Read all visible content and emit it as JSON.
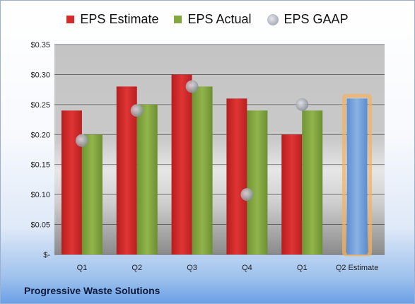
{
  "footer_title": "Progressive Waste Solutions",
  "colors": {
    "estimate": "#d42a2a",
    "actual": "#84a83f",
    "gaap": "#a8adb5",
    "forecast": "#79a5db",
    "forecast_glow": "#f3b15f"
  },
  "chart_data": {
    "type": "bar",
    "categories": [
      "Q1",
      "Q2",
      "Q3",
      "Q4",
      "Q1",
      "Q2 Estimate"
    ],
    "series": [
      {
        "name": "EPS Estimate",
        "values": [
          0.24,
          0.28,
          0.3,
          0.26,
          0.2,
          null
        ]
      },
      {
        "name": "EPS Actual",
        "values": [
          0.2,
          0.25,
          0.28,
          0.24,
          0.24,
          null
        ]
      },
      {
        "name": "EPS GAAP",
        "marker": "circle",
        "values": [
          0.19,
          0.24,
          0.28,
          0.1,
          0.25,
          null
        ]
      }
    ],
    "forecast": {
      "category": "Q2 Estimate",
      "value": 0.26,
      "highlighted": true
    },
    "ylim": [
      0,
      0.35
    ],
    "yticks": [
      0,
      0.05,
      0.1,
      0.15,
      0.2,
      0.25,
      0.3,
      0.35
    ],
    "ytick_labels": [
      "$-",
      "$0.05",
      "$0.10",
      "$0.15",
      "$0.20",
      "$0.25",
      "$0.30",
      "$0.35"
    ],
    "legend_position": "top-center",
    "grid": true
  }
}
